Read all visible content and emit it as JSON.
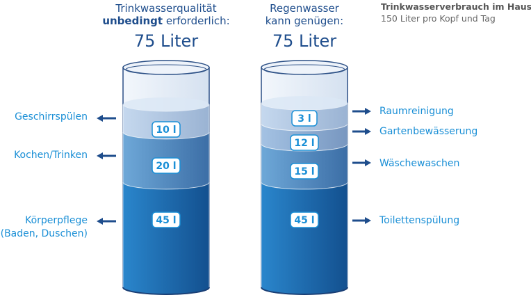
{
  "info": {
    "title": "Trinkwasserverbrauch im Haushalt",
    "subtitle": "150 Liter pro Kopf und Tag"
  },
  "left": {
    "heading_line1": "Trinkwasserqualität",
    "heading_bold": "unbedingt",
    "heading_rest": " erforderlich:",
    "total": "75 Liter",
    "layers": [
      {
        "label": "Geschirrspülen",
        "volume": "10 l",
        "liters": 10
      },
      {
        "label": "Kochen/Trinken",
        "volume": "20 l",
        "liters": 20
      },
      {
        "label": "Körperpflege",
        "label2": "(Baden, Duschen)",
        "volume": "45 l",
        "liters": 45
      }
    ]
  },
  "right": {
    "heading_line1": "Regenwasser",
    "heading_line2": "kann genügen:",
    "total": "75 Liter",
    "layers": [
      {
        "label": "Raumreinigung",
        "volume": "3 l",
        "liters": 3
      },
      {
        "label": "Gartenbewässerung",
        "volume": "12 l",
        "liters": 12
      },
      {
        "label": "Wäschewaschen",
        "volume": "15 l",
        "liters": 15
      },
      {
        "label": "Toilettenspülung",
        "volume": "45 l",
        "liters": 45
      }
    ]
  },
  "colors": {
    "dark_blue": "#1e4d8c",
    "light_blue": "#1a8fd6",
    "water_deep": "#1f6fb8"
  }
}
